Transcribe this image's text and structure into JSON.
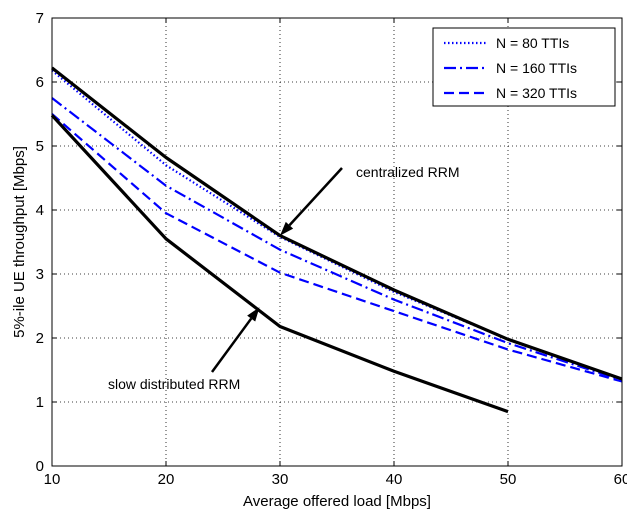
{
  "chart_data": {
    "type": "line",
    "title": "",
    "xlabel": "Average offered load [Mbps]",
    "ylabel": "5%-ile UE throughput [Mbps]",
    "xlim": [
      10,
      60
    ],
    "ylim": [
      0,
      7
    ],
    "xticks": [
      "10",
      "20",
      "30",
      "40",
      "50",
      "60"
    ],
    "yticks": [
      "0",
      "1",
      "2",
      "3",
      "4",
      "5",
      "6",
      "7"
    ],
    "grid": true,
    "legend_position": "top-right",
    "series": [
      {
        "name": "N = 80 TTIs",
        "color": "#0000ff",
        "dash": "dotted",
        "x": [
          10,
          20,
          30,
          40,
          50,
          60
        ],
        "y": [
          6.18,
          4.7,
          3.58,
          2.72,
          1.98,
          1.35
        ]
      },
      {
        "name": "N = 160 TTIs",
        "color": "#0000ff",
        "dash": "dashdot",
        "x": [
          10,
          20,
          30,
          40,
          50,
          60
        ],
        "y": [
          5.75,
          4.38,
          3.38,
          2.6,
          1.92,
          1.34
        ]
      },
      {
        "name": "N = 320 TTIs",
        "color": "#0000ff",
        "dash": "dashed",
        "x": [
          10,
          20,
          30,
          40,
          50,
          60
        ],
        "y": [
          5.5,
          3.95,
          3.02,
          2.42,
          1.82,
          1.32
        ]
      },
      {
        "name": "",
        "color": "#000000",
        "dash": "solid",
        "x": [
          10,
          20,
          30,
          40,
          50,
          60
        ],
        "y": [
          6.22,
          4.82,
          3.6,
          2.75,
          1.98,
          1.36
        ]
      },
      {
        "name": "",
        "color": "#000000",
        "dash": "solid",
        "x": [
          10,
          20,
          30,
          40,
          50
        ],
        "y": [
          5.48,
          3.55,
          2.18,
          1.48,
          0.85
        ]
      }
    ],
    "annotations": [
      {
        "text": "centralized RRM",
        "target": [
          30,
          3.6
        ]
      },
      {
        "text": "slow distributed RRM",
        "target": [
          28.2,
          2.48
        ]
      }
    ]
  }
}
